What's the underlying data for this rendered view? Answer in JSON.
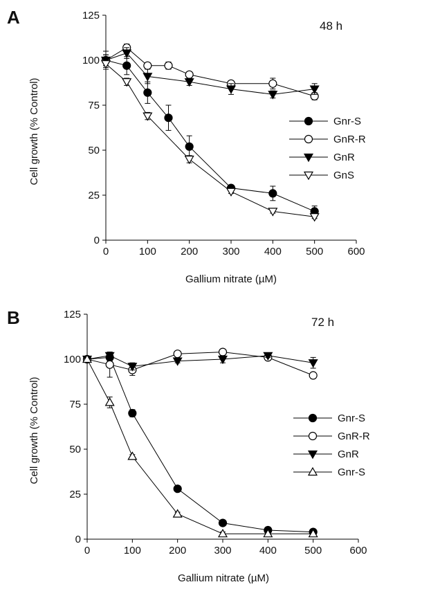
{
  "panels": [
    {
      "letter": "A",
      "timepoint": "48 h",
      "xlabel": "Gallium nitrate (µM)",
      "ylabel": "Cell growth (% Control)"
    },
    {
      "letter": "B",
      "timepoint": "72 h",
      "xlabel": "Gallium nitrate (µM)",
      "ylabel": "Cell growth (% Control)"
    }
  ],
  "chart_data": [
    {
      "type": "line",
      "title": "48 h",
      "xlabel": "Gallium nitrate (µM)",
      "ylabel": "Cell growth (% Control)",
      "xlim": [
        0,
        600
      ],
      "ylim": [
        0,
        125
      ],
      "xticks": [
        0,
        100,
        200,
        300,
        400,
        500,
        600
      ],
      "yticks": [
        0,
        25,
        50,
        75,
        100,
        125
      ],
      "grid": false,
      "legend_position": "right",
      "series": [
        {
          "name": "Gnr-S",
          "marker": "circle-filled",
          "x": [
            0,
            50,
            100,
            150,
            200,
            300,
            400,
            500
          ],
          "y": [
            100,
            97,
            82,
            68,
            52,
            29,
            26,
            16
          ],
          "err": [
            5,
            5,
            6,
            7,
            6,
            1,
            4,
            3
          ]
        },
        {
          "name": "GnR-R",
          "marker": "circle-open",
          "x": [
            0,
            50,
            100,
            150,
            200,
            300,
            400,
            500
          ],
          "y": [
            100,
            107,
            97,
            97,
            92,
            87,
            87,
            80
          ],
          "err": [
            3,
            2,
            1,
            2,
            1,
            1,
            3,
            2
          ]
        },
        {
          "name": "GnR",
          "marker": "triangle-down-filled",
          "x": [
            0,
            50,
            100,
            200,
            300,
            400,
            500
          ],
          "y": [
            100,
            104,
            91,
            88,
            84,
            81,
            84
          ],
          "err": [
            3,
            3,
            4,
            2,
            3,
            2,
            3
          ]
        },
        {
          "name": "GnS",
          "marker": "triangle-down-open",
          "x": [
            0,
            50,
            100,
            200,
            300,
            400,
            500
          ],
          "y": [
            98,
            88,
            69,
            45,
            27,
            16,
            13
          ],
          "err": [
            2,
            2,
            2,
            2,
            1,
            1,
            1
          ]
        }
      ]
    },
    {
      "type": "line",
      "title": "72 h",
      "xlabel": "Gallium nitrate (µM)",
      "ylabel": "Cell growth (% Control)",
      "xlim": [
        0,
        600
      ],
      "ylim": [
        0,
        125
      ],
      "xticks": [
        0,
        100,
        200,
        300,
        400,
        500,
        600
      ],
      "yticks": [
        0,
        25,
        50,
        75,
        100,
        125
      ],
      "grid": false,
      "legend_position": "right",
      "series": [
        {
          "name": "Gnr-S",
          "marker": "circle-filled",
          "x": [
            0,
            50,
            100,
            200,
            300,
            400,
            500
          ],
          "y": [
            100,
            101,
            70,
            28,
            9,
            5,
            4
          ],
          "err": [
            1,
            2,
            2,
            1,
            1,
            1,
            1
          ]
        },
        {
          "name": "GnR-R",
          "marker": "circle-open",
          "x": [
            0,
            50,
            100,
            200,
            300,
            400,
            500
          ],
          "y": [
            100,
            97,
            94,
            103,
            104,
            101,
            91
          ],
          "err": [
            1,
            7,
            3,
            1,
            1,
            1,
            1
          ]
        },
        {
          "name": "GnR",
          "marker": "triangle-down-filled",
          "x": [
            0,
            50,
            100,
            200,
            300,
            400,
            500
          ],
          "y": [
            100,
            102,
            96,
            99,
            100,
            102,
            98
          ],
          "err": [
            1,
            2,
            2,
            1,
            2,
            1,
            3
          ]
        },
        {
          "name": "Gnr-S",
          "marker": "triangle-up-open",
          "x": [
            0,
            50,
            100,
            200,
            300,
            400,
            500
          ],
          "y": [
            100,
            76,
            46,
            14,
            3,
            3,
            3
          ],
          "err": [
            1,
            3,
            1,
            1,
            1,
            1,
            1
          ]
        }
      ]
    }
  ]
}
